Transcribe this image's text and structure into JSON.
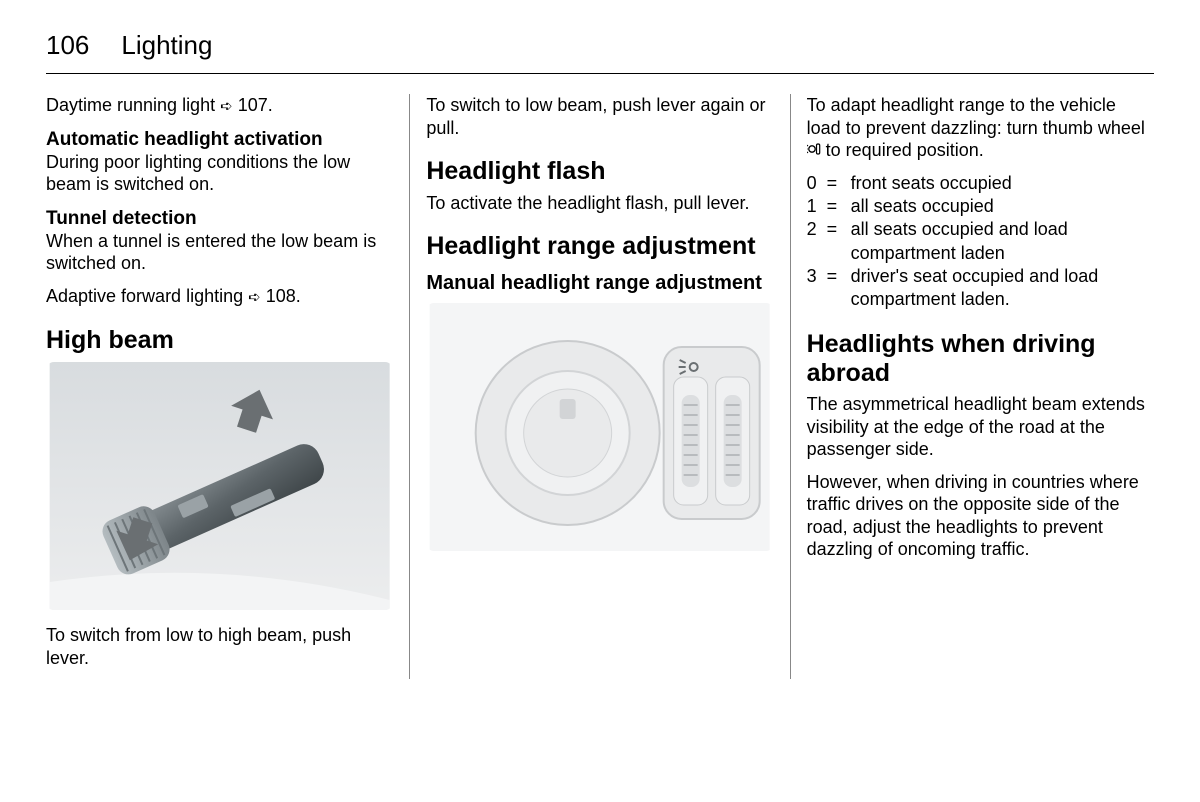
{
  "header": {
    "page_number": "106",
    "chapter_title": "Lighting"
  },
  "col1": {
    "drl_text": "Daytime running light ",
    "drl_ref": "107.",
    "auto_headlight_title": "Automatic headlight activation",
    "auto_headlight_body": "During poor lighting conditions the low beam is switched on.",
    "tunnel_title": "Tunnel detection",
    "tunnel_body": "When a tunnel is entered the low beam is switched on.",
    "adaptive_text": "Adaptive forward lighting ",
    "adaptive_ref": "108.",
    "highbeam_title": "High beam",
    "highbeam_caption": "To switch from low to high beam, push lever."
  },
  "col2": {
    "lowbeam_back": "To switch to low beam, push lever again or pull.",
    "flash_title": "Headlight flash",
    "flash_body": "To activate the headlight flash, pull lever.",
    "range_title": "Headlight range adjustment",
    "range_sub": "Manual headlight range adjustment"
  },
  "col3": {
    "adapt_body_pre": "To adapt headlight range to the vehicle load to prevent dazzling: turn thumb wheel ",
    "adapt_body_post": " to required position.",
    "positions": [
      {
        "key": "0",
        "val": "front seats occupied"
      },
      {
        "key": "1",
        "val": "all seats occupied"
      },
      {
        "key": "2",
        "val": "all seats occupied and load compartment laden"
      },
      {
        "key": "3",
        "val": "driver's seat occupied and load compartment laden."
      }
    ],
    "abroad_title": "Headlights when driving abroad",
    "abroad_p1": "The asymmetrical headlight beam extends visibility at the edge of the road at the passenger side.",
    "abroad_p2": "However, when driving in countries where traffic drives on the opposite side of the road, adjust the headlights to prevent dazzling of oncoming traffic."
  },
  "icons": {
    "ref_arrow": "➪"
  },
  "figures": {
    "lever": {
      "bg_gradient_from": "#d8dcdf",
      "bg_gradient_to": "#ecedee",
      "lever_dark": "#5c6468",
      "lever_mid": "#8a9296",
      "lever_light": "#b4bcc0",
      "arrow": "#6a6f72"
    },
    "dial": {
      "bg": "#f4f5f6",
      "panel": "#e9eaeb",
      "outline": "#c9cbcd",
      "knob_face": "#f0f1f2",
      "knob_shadow": "#d2d4d6",
      "slot_dark": "#b8bbbe"
    }
  }
}
